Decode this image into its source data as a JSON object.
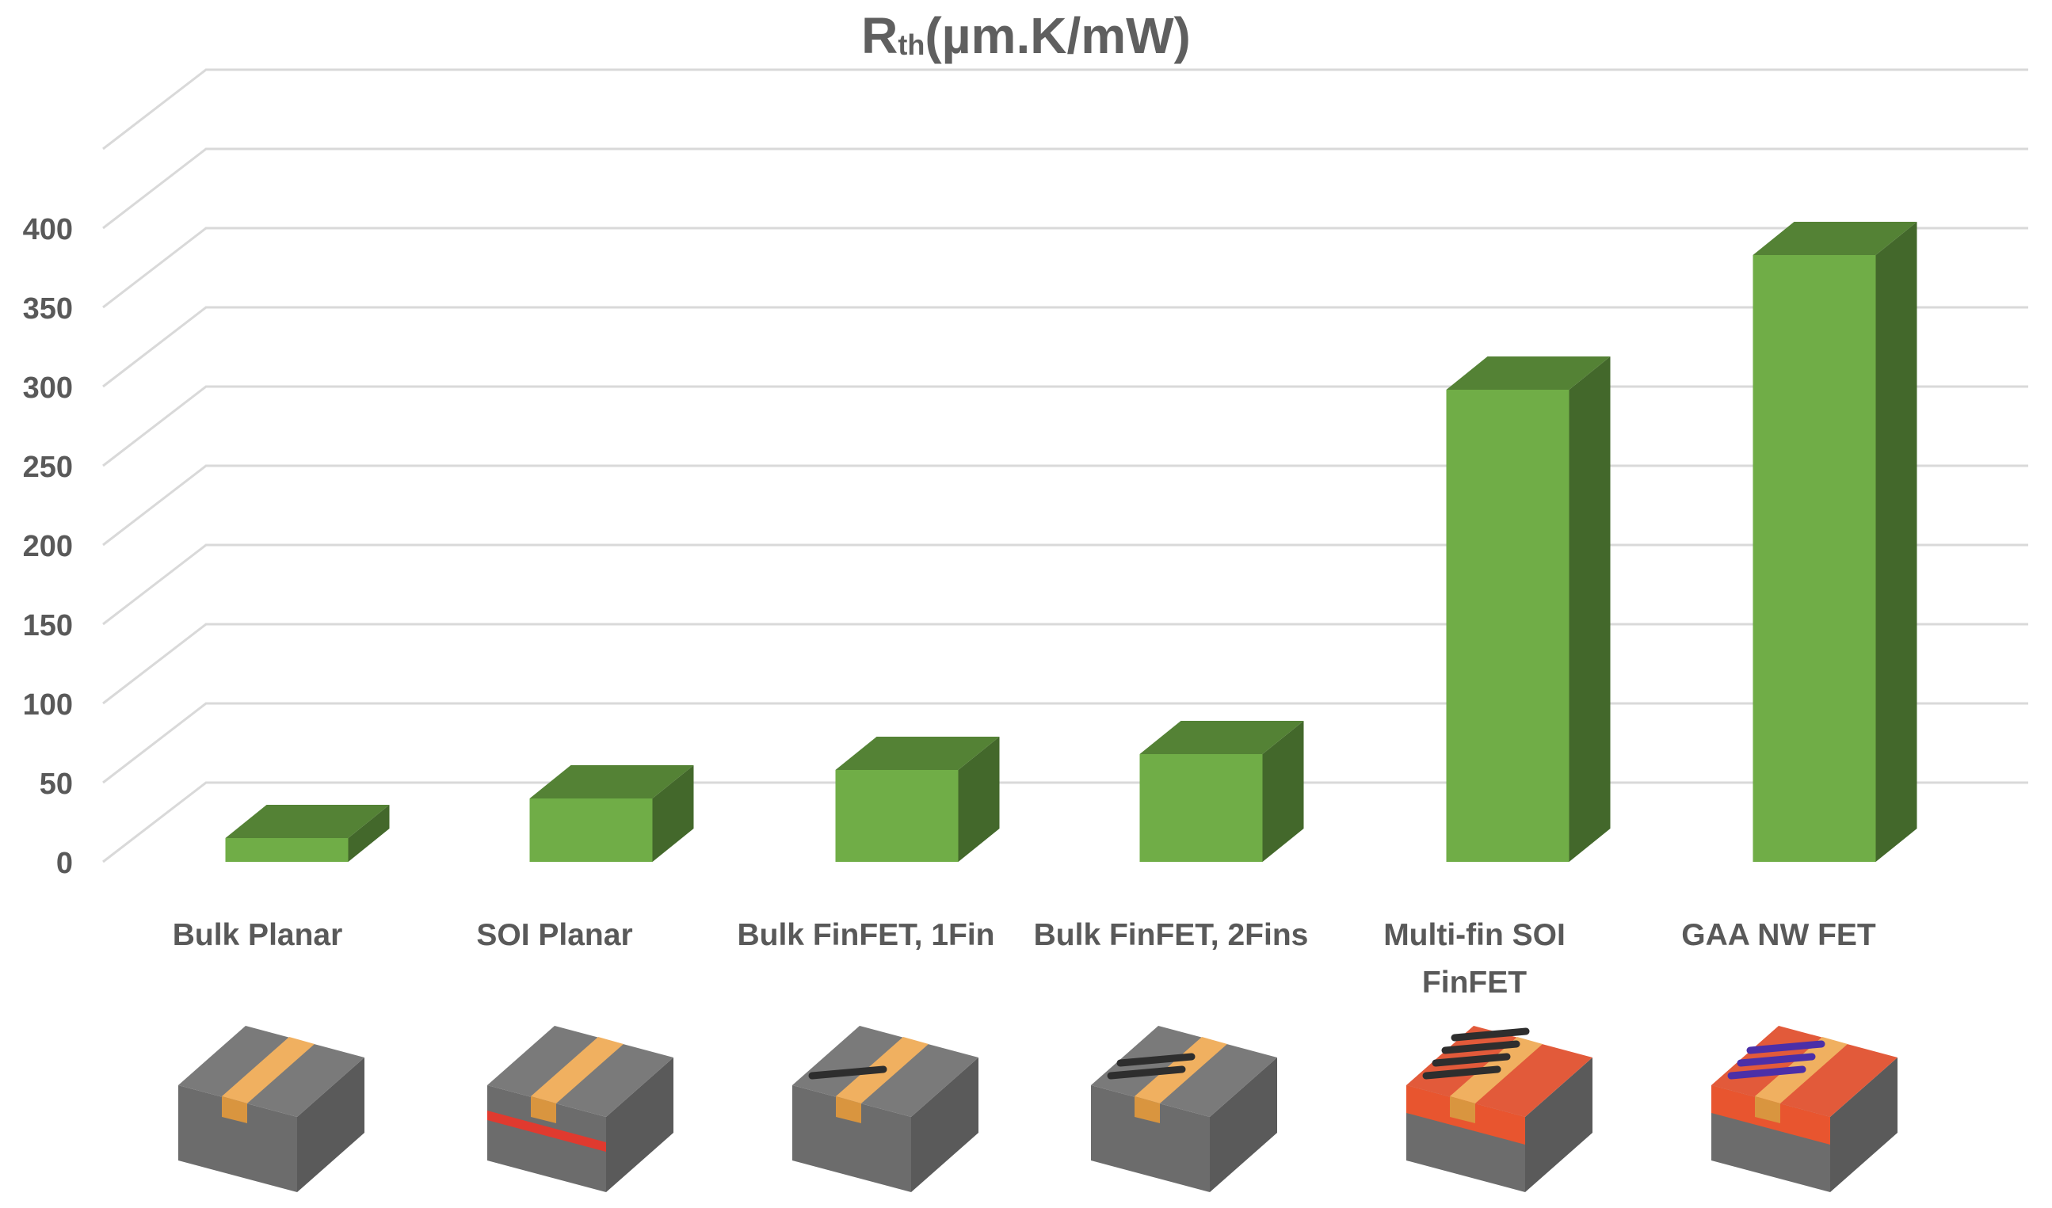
{
  "chart_data": {
    "type": "bar",
    "title": {
      "main": "R",
      "sub": "th",
      "unit": "(µm.K/mW)"
    },
    "categories": [
      [
        "Bulk Planar"
      ],
      [
        "SOI Planar"
      ],
      [
        "Bulk FinFET, 1Fin"
      ],
      [
        "Bulk FinFET, 2Fins"
      ],
      [
        "Multi-fin SOI",
        "FinFET"
      ],
      [
        "GAA NW FET"
      ]
    ],
    "values": [
      15,
      40,
      58,
      68,
      298,
      383
    ],
    "ylim": [
      0,
      450
    ],
    "yticks": [
      "0",
      "50",
      "100",
      "150",
      "200",
      "250",
      "300",
      "350",
      "400"
    ],
    "grid": true,
    "style": "3d",
    "colors": {
      "front": "#70ad47",
      "top": "#548235",
      "side": "#43682b",
      "grid": "#d9d9d9",
      "text": "#595959"
    },
    "device_icons": [
      "bulk-planar",
      "soi-planar",
      "bulk-finfet-1fin",
      "bulk-finfet-2fins",
      "multifin-soi-finfet",
      "gaa-nw-fet"
    ]
  }
}
